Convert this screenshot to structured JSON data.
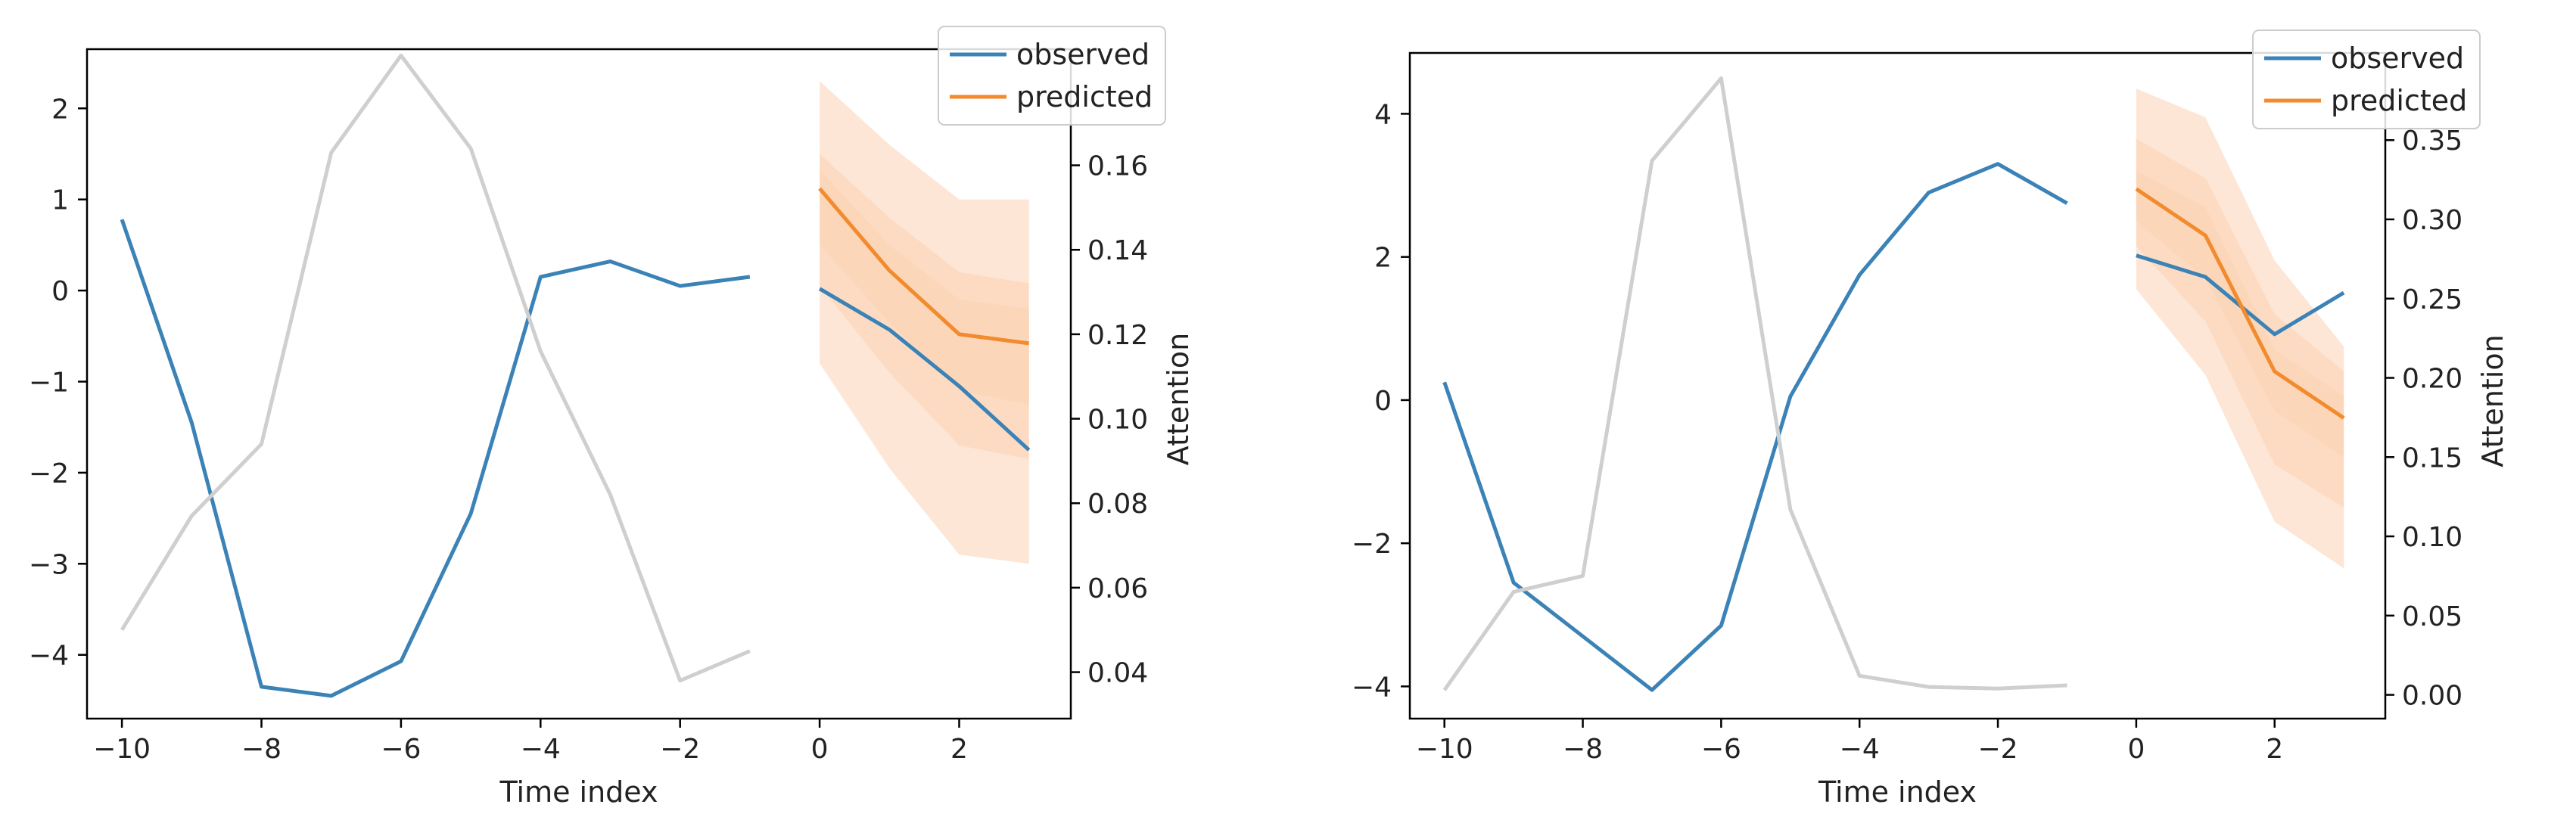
{
  "colors": {
    "observed": "#3b82b7",
    "predicted": "#f28a2e",
    "interval": "#fcd2b3",
    "attention": "#cfcfcf",
    "axis": "#000000",
    "legend_border": "#cccccc"
  },
  "chart_data": [
    {
      "type": "line",
      "xlabel": "Time index",
      "ylabel_right": "Attention",
      "xlim": [
        -10.5,
        3.6
      ],
      "ylim": [
        -4.7,
        2.65
      ],
      "y2lim": [
        0.029,
        0.1875
      ],
      "xticks": [
        -10,
        -8,
        -6,
        -4,
        -2,
        0,
        2
      ],
      "xtick_labels": [
        "−10",
        "−8",
        "−6",
        "−4",
        "−2",
        "0",
        "2"
      ],
      "yticks": [
        2,
        1,
        0,
        -1,
        -2,
        -3,
        -4
      ],
      "ytick_labels": [
        "2",
        "1",
        "0",
        "−1",
        "−2",
        "−3",
        "−4"
      ],
      "y2ticks": [
        0.16,
        0.14,
        0.12,
        0.1,
        0.08,
        0.06,
        0.04
      ],
      "y2tick_labels": [
        "0.16",
        "0.14",
        "0.12",
        "0.10",
        "0.08",
        "0.06",
        "0.04"
      ],
      "legend": {
        "observed": "observed",
        "predicted": "predicted",
        "placement": "top-right"
      },
      "series": [
        {
          "name": "observed",
          "x": [
            -10,
            -9,
            -8,
            -7,
            -6,
            -5,
            -4,
            -3,
            -2,
            -1
          ],
          "values": [
            0.78,
            -1.45,
            -4.35,
            -4.45,
            -4.07,
            -2.45,
            0.15,
            0.32,
            0.05,
            0.15
          ]
        },
        {
          "name": "observed",
          "x": [
            0,
            1,
            2,
            3
          ],
          "values": [
            0.02,
            -0.43,
            -1.05,
            -1.75
          ]
        },
        {
          "name": "predicted",
          "x": [
            0,
            1,
            2,
            3
          ],
          "values": [
            1.12,
            0.22,
            -0.48,
            -0.58
          ]
        },
        {
          "name": "attention",
          "axis": "right",
          "x": [
            -10,
            -9,
            -8,
            -7,
            -6,
            -5,
            -4,
            -3,
            -2,
            -1
          ],
          "values": [
            0.05,
            0.077,
            0.094,
            0.163,
            0.186,
            0.164,
            0.116,
            0.082,
            0.038,
            0.045
          ]
        }
      ],
      "bands": [
        {
          "x": [
            0,
            1,
            2,
            3
          ],
          "lower": [
            -0.8,
            -1.95,
            -2.9,
            -3.0
          ],
          "upper": [
            2.3,
            1.6,
            1.0,
            1.0
          ]
        },
        {
          "x": [
            0,
            1,
            2,
            3
          ],
          "lower": [
            0.05,
            -0.9,
            -1.7,
            -1.85
          ],
          "upper": [
            1.5,
            0.8,
            0.2,
            0.08
          ]
        },
        {
          "x": [
            0,
            1,
            2,
            3
          ],
          "lower": [
            0.5,
            -0.35,
            -1.1,
            -1.25
          ],
          "upper": [
            1.32,
            0.5,
            -0.1,
            -0.2
          ]
        }
      ]
    },
    {
      "type": "line",
      "xlabel": "Time index",
      "ylabel_right": "Attention",
      "xlim": [
        -10.5,
        3.6
      ],
      "ylim": [
        -4.45,
        4.85
      ],
      "y2lim": [
        -0.015,
        0.405
      ],
      "xticks": [
        -10,
        -8,
        -6,
        -4,
        -2,
        0,
        2
      ],
      "xtick_labels": [
        "−10",
        "−8",
        "−6",
        "−4",
        "−2",
        "0",
        "2"
      ],
      "yticks": [
        4,
        2,
        0,
        -2,
        -4
      ],
      "ytick_labels": [
        "4",
        "2",
        "0",
        "−2",
        "−4"
      ],
      "y2ticks": [
        0.35,
        0.3,
        0.25,
        0.2,
        0.15,
        0.1,
        0.05,
        0.0
      ],
      "y2tick_labels": [
        "0.35",
        "0.30",
        "0.25",
        "0.20",
        "0.15",
        "0.10",
        "0.05",
        "0.00"
      ],
      "legend": {
        "observed": "observed",
        "predicted": "predicted",
        "placement": "top-right"
      },
      "series": [
        {
          "name": "observed",
          "x": [
            -10,
            -9,
            -8,
            -7,
            -6,
            -5,
            -4,
            -3,
            -2,
            -1
          ],
          "values": [
            0.25,
            -2.55,
            -3.3,
            -4.05,
            -3.15,
            0.05,
            1.75,
            2.9,
            3.3,
            2.75
          ]
        },
        {
          "name": "observed",
          "x": [
            0,
            1,
            2,
            3
          ],
          "values": [
            2.02,
            1.72,
            0.92,
            1.5
          ]
        },
        {
          "name": "predicted",
          "x": [
            0,
            1,
            2,
            3
          ],
          "values": [
            2.95,
            2.3,
            0.4,
            -0.25
          ]
        },
        {
          "name": "attention",
          "axis": "right",
          "x": [
            -10,
            -9,
            -8,
            -7,
            -6,
            -5,
            -4,
            -3,
            -2,
            -1
          ],
          "values": [
            0.003,
            0.065,
            0.075,
            0.337,
            0.389,
            0.117,
            0.012,
            0.005,
            0.004,
            0.006
          ]
        }
      ],
      "bands": [
        {
          "x": [
            0,
            1,
            2,
            3
          ],
          "lower": [
            1.55,
            0.35,
            -1.7,
            -2.35
          ],
          "upper": [
            4.35,
            3.95,
            1.95,
            0.75
          ]
        },
        {
          "x": [
            0,
            1,
            2,
            3
          ],
          "lower": [
            2.15,
            1.1,
            -0.9,
            -1.5
          ],
          "upper": [
            3.65,
            3.1,
            1.2,
            0.4
          ]
        },
        {
          "x": [
            0,
            1,
            2,
            3
          ],
          "lower": [
            2.5,
            1.7,
            -0.15,
            -0.8
          ],
          "upper": [
            3.2,
            2.7,
            0.7,
            0.05
          ]
        }
      ]
    }
  ]
}
